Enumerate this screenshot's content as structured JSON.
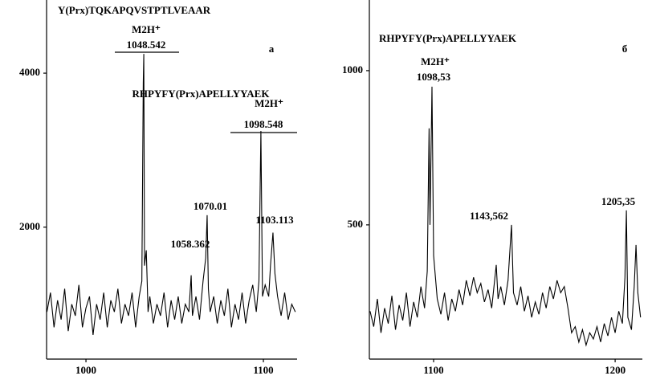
{
  "chart_data": [
    {
      "type": "line",
      "color": "#000000",
      "annotations": [
        "Y(Prx)TQKAPQVSTPTLVEAAR",
        "M2H⁺",
        "1048.542",
        "а",
        "RHPYFY(Prx)APELLYYAEK",
        "M2H⁺",
        "1098.548",
        "1070.01",
        "1103.113",
        "1058.362"
      ],
      "xlim": [
        977.8,
        1119
      ],
      "ylim": [
        360,
        4950
      ],
      "xticks": [
        1000,
        1100
      ],
      "yticks": [
        2000,
        4000
      ],
      "x": [
        978,
        980,
        982,
        984,
        986,
        988,
        990,
        992,
        994,
        996,
        998,
        1000,
        1002,
        1004,
        1006,
        1008,
        1010,
        1012,
        1014,
        1016,
        1018,
        1020,
        1022,
        1024,
        1026,
        1028,
        1030,
        1031.5,
        1032.3,
        1032.6,
        1033,
        1034,
        1035,
        1036,
        1038,
        1040,
        1042,
        1044,
        1046,
        1048,
        1050,
        1052,
        1054,
        1056,
        1058,
        1059.3,
        1060,
        1062,
        1064,
        1066,
        1067.5,
        1068.3,
        1069,
        1070,
        1072,
        1074,
        1076,
        1078,
        1080,
        1082,
        1084,
        1086,
        1088,
        1090,
        1092,
        1094,
        1096,
        1097.5,
        1098.6,
        1099.5,
        1101,
        1103,
        1104,
        1105.4,
        1106.5,
        1108,
        1110,
        1112,
        1114,
        1116,
        1118
      ],
      "values": [
        900,
        1150,
        700,
        1050,
        800,
        1200,
        650,
        1000,
        850,
        1250,
        700,
        950,
        1100,
        600,
        1000,
        800,
        1150,
        700,
        1050,
        900,
        1200,
        750,
        1000,
        850,
        1150,
        700,
        1100,
        1300,
        3875,
        4250,
        1500,
        1700,
        900,
        1100,
        750,
        1000,
        850,
        1150,
        700,
        1050,
        800,
        1100,
        750,
        1000,
        900,
        1375,
        850,
        1100,
        800,
        1300,
        1600,
        2156,
        1200,
        900,
        1100,
        750,
        1050,
        850,
        1200,
        700,
        1000,
        800,
        1150,
        750,
        1050,
        1250,
        900,
        1300,
        3250,
        1100,
        1250,
        1100,
        1500,
        1930,
        1400,
        1100,
        850,
        1150,
        800,
        1000,
        900
      ]
    },
    {
      "type": "line",
      "color": "#000000",
      "annotations": [
        "RHPYFY(Prx)APELLYYAEK",
        "б",
        "M2H⁺",
        "1098,53",
        "1143,562",
        "1205,35"
      ],
      "xlim": [
        1064.6,
        1215
      ],
      "ylim": [
        83,
        1229
      ],
      "xticks": [
        1100,
        1200
      ],
      "yticks": [
        500,
        1000
      ],
      "x": [
        1065,
        1067,
        1069,
        1071,
        1073,
        1075,
        1077,
        1079,
        1081,
        1083,
        1085,
        1087,
        1089,
        1091,
        1093,
        1095,
        1096.5,
        1097.5,
        1098,
        1099.1,
        1100,
        1101,
        1102,
        1104,
        1106,
        1108,
        1110,
        1112,
        1114,
        1116,
        1118,
        1120,
        1122,
        1124,
        1126,
        1128,
        1130,
        1132,
        1134.5,
        1135.5,
        1137,
        1139,
        1141,
        1142.9,
        1144,
        1146,
        1148,
        1150,
        1152,
        1154,
        1156,
        1158,
        1160,
        1162,
        1164,
        1166,
        1168,
        1170,
        1172,
        1174,
        1176,
        1178,
        1180,
        1182,
        1184,
        1186,
        1188,
        1190,
        1192,
        1194,
        1196,
        1198,
        1200,
        1202,
        1204,
        1205.4,
        1206.2,
        1207,
        1209,
        1210.5,
        1211.5,
        1212.5,
        1214
      ],
      "values": [
        220,
        170,
        260,
        150,
        230,
        180,
        270,
        160,
        240,
        190,
        280,
        170,
        250,
        200,
        300,
        230,
        350,
        813,
        500,
        948,
        400,
        330,
        260,
        210,
        280,
        190,
        260,
        220,
        290,
        240,
        320,
        270,
        330,
        280,
        310,
        250,
        290,
        230,
        370,
        260,
        300,
        240,
        320,
        500,
        280,
        240,
        300,
        220,
        270,
        200,
        250,
        210,
        280,
        230,
        300,
        260,
        320,
        280,
        300,
        230,
        150,
        170,
        120,
        160,
        110,
        150,
        130,
        170,
        120,
        180,
        140,
        200,
        150,
        220,
        180,
        330,
        547,
        200,
        160,
        300,
        435,
        280,
        200
      ]
    }
  ]
}
